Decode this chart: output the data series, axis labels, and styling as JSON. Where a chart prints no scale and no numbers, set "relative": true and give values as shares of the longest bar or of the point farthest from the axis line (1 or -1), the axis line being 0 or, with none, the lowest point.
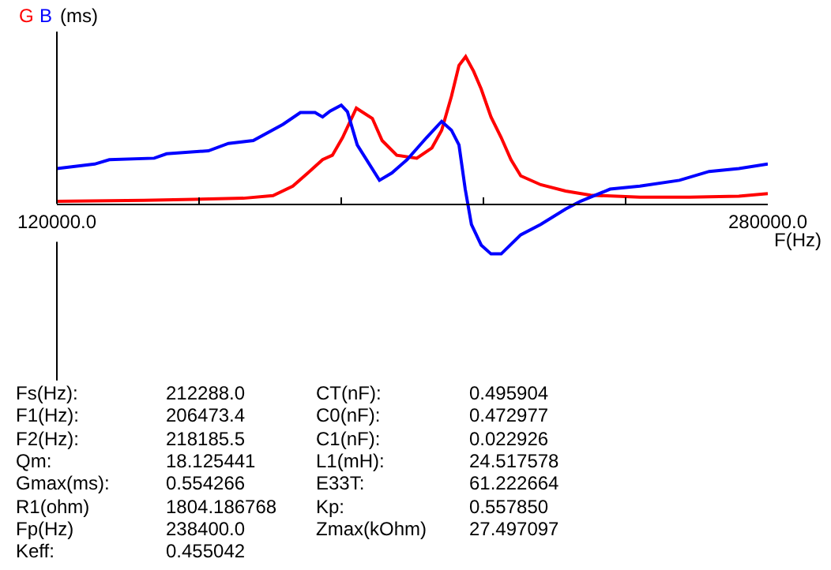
{
  "chart_data": {
    "type": "line",
    "relative": true,
    "ylabel": "(ms)",
    "xlabel": "F(Hz)",
    "xlim": [
      120000,
      280000
    ],
    "xticks": [
      {
        "value": 120000,
        "label": "120000.0"
      },
      {
        "value": 152000,
        "label": null
      },
      {
        "value": 184000,
        "label": null
      },
      {
        "value": 216000,
        "label": null
      },
      {
        "value": 248000,
        "label": null
      },
      {
        "value": 280000,
        "label": "280000.0"
      }
    ],
    "series": [
      {
        "name": "G",
        "color": "#ff0000",
        "x": [
          120000,
          139600,
          150800,
          161950,
          168650,
          173100,
          176500,
          179800,
          182000,
          184300,
          187400,
          191000,
          193200,
          196500,
          201000,
          204400,
          206600,
          208800,
          210500,
          212000,
          213800,
          215500,
          217700,
          220000,
          222200,
          224400,
          228900,
          234500,
          240100,
          251200,
          262400,
          273500,
          280000
        ],
        "values": [
          0.017,
          0.024,
          0.031,
          0.038,
          0.056,
          0.12,
          0.21,
          0.3,
          0.33,
          0.45,
          0.65,
          0.58,
          0.43,
          0.33,
          0.31,
          0.38,
          0.5,
          0.73,
          0.94,
          1,
          0.9,
          0.78,
          0.59,
          0.45,
          0.3,
          0.19,
          0.13,
          0.087,
          0.059,
          0.045,
          0.045,
          0.052,
          0.069
        ]
      },
      {
        "name": "B",
        "color": "#0000ff",
        "x": [
          120000,
          128500,
          131800,
          141900,
          144700,
          154100,
          158600,
          164200,
          170900,
          174800,
          178100,
          179800,
          181500,
          184000,
          185400,
          187600,
          192600,
          195400,
          198800,
          203200,
          206600,
          208800,
          210500,
          211900,
          213300,
          215500,
          217700,
          220000,
          224400,
          228900,
          234500,
          237800,
          244500,
          251200,
          260100,
          266800,
          273500,
          280000
        ],
        "values": [
          0.24,
          0.27,
          0.3,
          0.31,
          0.34,
          0.36,
          0.41,
          0.43,
          0.54,
          0.62,
          0.62,
          0.59,
          0.63,
          0.67,
          0.625,
          0.4,
          0.16,
          0.21,
          0.3,
          0.45,
          0.56,
          0.5,
          0.4,
          0.1,
          -0.14,
          -0.28,
          -0.34,
          -0.34,
          -0.21,
          -0.14,
          -0.035,
          0.017,
          0.1,
          0.12,
          0.16,
          0.22,
          0.24,
          0.27
        ]
      }
    ],
    "annotations": [
      "Fs(Hz):",
      "212288.0",
      "CT(nF):",
      "0.495904",
      "F1(Hz):",
      "206473.4",
      "C0(nF):",
      "0.472977",
      "F2(Hz):",
      "218185.5",
      "C1(nF):",
      "0.022926",
      "Qm:",
      "18.125441",
      "L1(mH):",
      "24.517578",
      "Gmax(ms):",
      "0.554266",
      "E33T:",
      "61.222664",
      "R1(ohm)",
      "1804.186768",
      "Kp:",
      "0.557850",
      "Fp(Hz)",
      "238400.0",
      "Zmax(kOhm)",
      "27.497097",
      "Keff:",
      "0.455042"
    ]
  }
}
